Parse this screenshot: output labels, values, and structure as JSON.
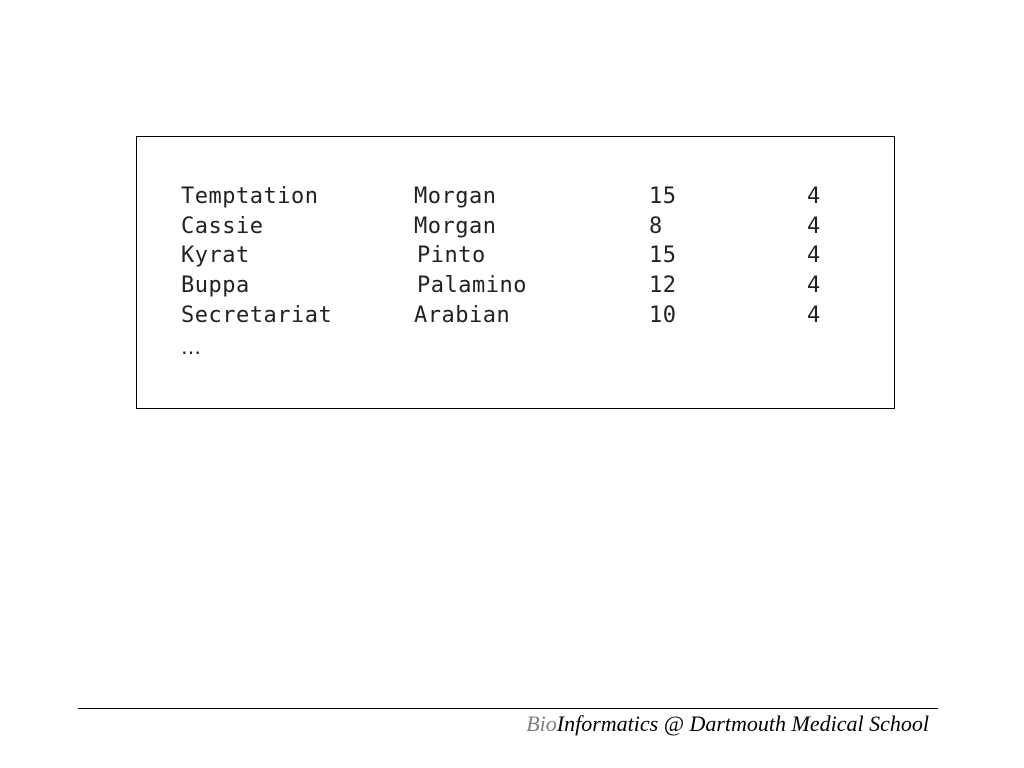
{
  "table": {
    "rows": [
      {
        "name": "Temptation",
        "breed": "Morgan",
        "age": "15",
        "value": "4"
      },
      {
        "name": "Cassie",
        "breed": "Morgan",
        "age": "8",
        "value": "4"
      },
      {
        "name": "Kyrat",
        "breed": "Pinto",
        "age": "15",
        "value": "4"
      },
      {
        "name": "Buppa",
        "breed": "Palamino",
        "age": "12",
        "value": "4"
      },
      {
        "name": "Secretariat",
        "breed": "Arabian",
        "age": "10",
        "value": "4"
      }
    ],
    "ellipsis": "…"
  },
  "footer": {
    "prefix": "Bio",
    "text": "Informatics @ Dartmouth Medical School",
    "prefix_color": "#808080"
  }
}
